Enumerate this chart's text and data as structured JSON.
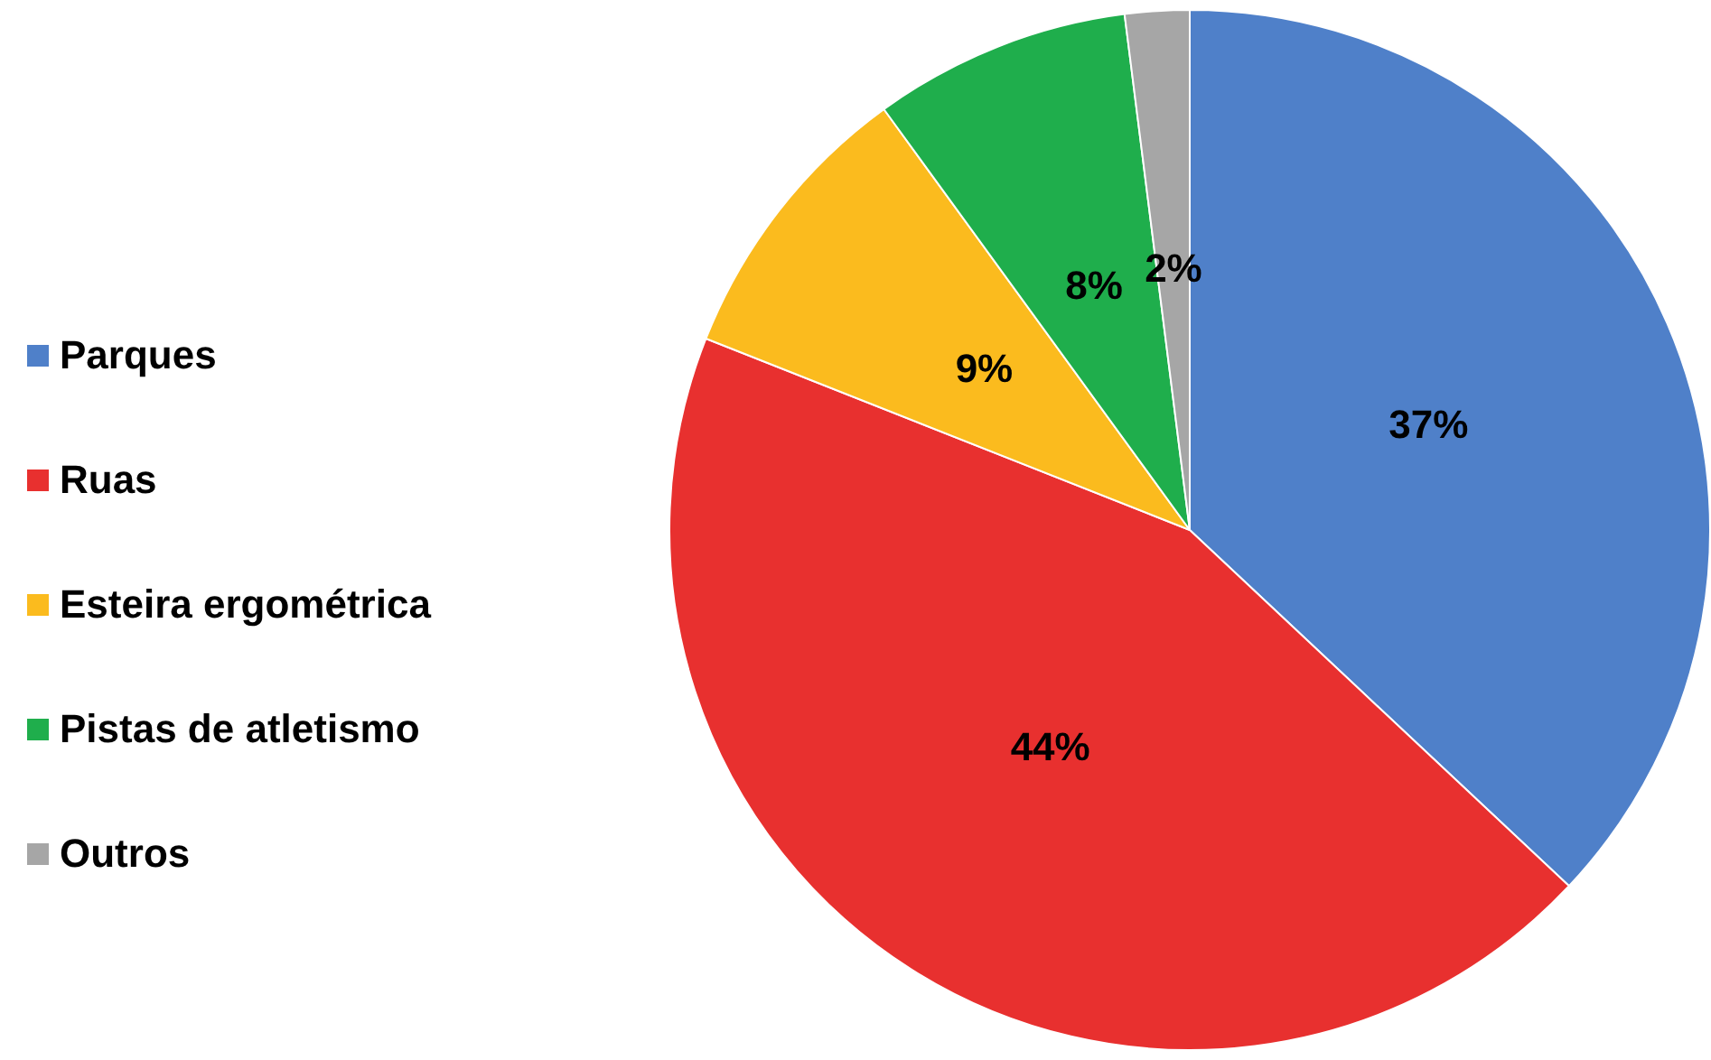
{
  "chart_data": {
    "type": "pie",
    "categories": [
      "Parques",
      "Ruas",
      "Esteira ergométrica",
      "Pistas de atletismo",
      "Outros"
    ],
    "values": [
      37,
      44,
      9,
      8,
      2
    ],
    "colors": [
      "#4f80c9",
      "#e8302f",
      "#fbbb1e",
      "#1fae4c",
      "#a6a6a6"
    ],
    "value_labels": [
      "37%",
      "44%",
      "9%",
      "8%",
      "2%"
    ],
    "legend": "left"
  }
}
